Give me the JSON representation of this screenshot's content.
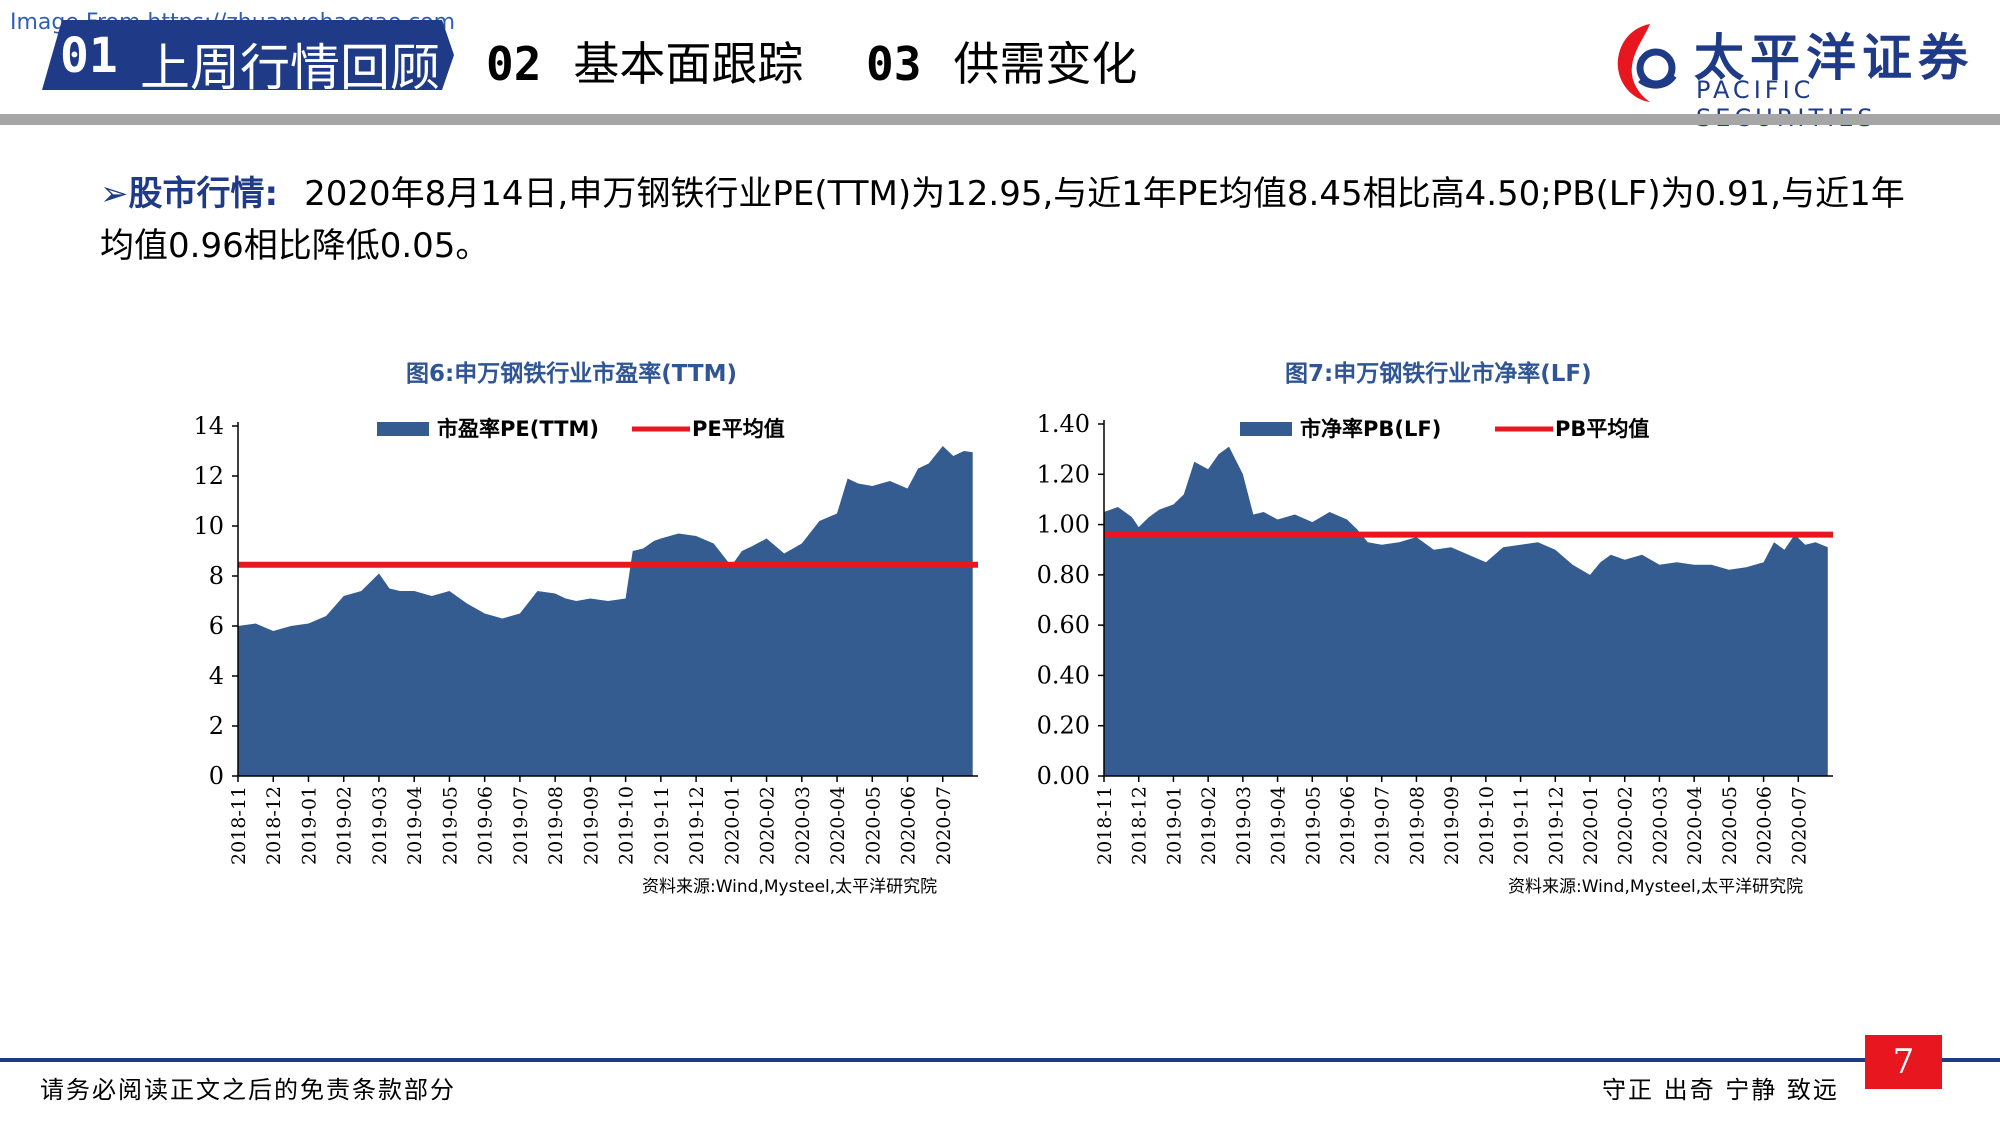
{
  "watermark": "Image From https://zhuanyehaogao.com",
  "nav": {
    "tab1_num": "01",
    "tab1_label": "上周行情回顾",
    "tab2_num": "02",
    "tab2_label": "基本面跟踪",
    "tab3_num": "03",
    "tab3_label": "供需变化"
  },
  "logo": {
    "cn": "太平洋证券",
    "en": "PACIFIC SECURITIES"
  },
  "bullet": {
    "head": "股市行情:",
    "text": "2020年8月14日,申万钢铁行业PE(TTM)为12.95,与近1年PE均值8.45相比高4.50;PB(LF)为0.91,与近1年均值0.96相比降低0.05。"
  },
  "colors": {
    "area": "#355c90",
    "mean_line": "#e8161e",
    "title": "#2f5597",
    "brand": "#1f3a87"
  },
  "chart_data": [
    {
      "type": "area",
      "title": "图6:申万钢铁行业市盈率(TTM)",
      "source": "资料来源:Wind,Mysteel,太平洋研究院",
      "x_ticks": [
        "2018-11",
        "2018-12",
        "2019-01",
        "2019-02",
        "2019-03",
        "2019-04",
        "2019-05",
        "2019-06",
        "2019-07",
        "2019-08",
        "2019-09",
        "2019-10",
        "2019-11",
        "2019-12",
        "2020-01",
        "2020-02",
        "2020-03",
        "2020-04",
        "2020-05",
        "2020-06",
        "2020-07"
      ],
      "y_ticks": [
        "0",
        "2",
        "4",
        "6",
        "8",
        "10",
        "12",
        "14"
      ],
      "ylim": [
        0,
        15
      ],
      "series": [
        {
          "name": "市盈率PE(TTM)",
          "kind": "area",
          "x": [
            0,
            0.5,
            1,
            1.5,
            2,
            2.5,
            3,
            3.5,
            4,
            4.3,
            4.6,
            5,
            5.5,
            6,
            6.5,
            7,
            7.5,
            8,
            8.5,
            9,
            9.3,
            9.6,
            10,
            10.5,
            11,
            11.2,
            11.5,
            11.8,
            12,
            12.5,
            13,
            13.5,
            14,
            14.3,
            14.6,
            15,
            15.5,
            16,
            16.5,
            17,
            17.3,
            17.6,
            18,
            18.5,
            19,
            19.3,
            19.6,
            20,
            20.3,
            20.6,
            20.85
          ],
          "values": [
            6.0,
            6.1,
            5.8,
            6.0,
            6.1,
            6.4,
            7.2,
            7.4,
            8.1,
            7.5,
            7.4,
            7.4,
            7.2,
            7.4,
            6.9,
            6.5,
            6.3,
            6.5,
            7.4,
            7.3,
            7.1,
            7.0,
            7.1,
            7.0,
            7.1,
            9.0,
            9.1,
            9.4,
            9.5,
            9.7,
            9.6,
            9.3,
            8.4,
            9.0,
            9.2,
            9.5,
            8.9,
            9.3,
            10.2,
            10.5,
            11.9,
            11.7,
            11.6,
            11.8,
            11.5,
            12.3,
            12.5,
            13.2,
            12.8,
            13.0,
            12.95
          ]
        },
        {
          "name": "PE平均值",
          "kind": "line",
          "value": 8.45
        }
      ]
    },
    {
      "type": "area",
      "title": "图7:申万钢铁行业市净率(LF)",
      "source": "资料来源:Wind,Mysteel,太平洋研究院",
      "x_ticks": [
        "2018-11",
        "2018-12",
        "2019-01",
        "2019-02",
        "2019-03",
        "2019-04",
        "2019-05",
        "2019-06",
        "2019-07",
        "2019-08",
        "2019-09",
        "2019-10",
        "2019-11",
        "2019-12",
        "2020-01",
        "2020-02",
        "2020-03",
        "2020-04",
        "2020-05",
        "2020-06",
        "2020-07"
      ],
      "y_ticks": [
        "0.00",
        "0.20",
        "0.40",
        "0.60",
        "0.80",
        "1.00",
        "1.20",
        "1.40"
      ],
      "ylim": [
        0,
        1.4
      ],
      "series": [
        {
          "name": "市净率PB(LF)",
          "kind": "area",
          "x": [
            0,
            0.4,
            0.8,
            1,
            1.3,
            1.6,
            2,
            2.3,
            2.6,
            3,
            3.3,
            3.6,
            4,
            4.3,
            4.6,
            5,
            5.5,
            6,
            6.5,
            7,
            7.3,
            7.6,
            8,
            8.5,
            9,
            9.5,
            10,
            10.5,
            11,
            11.5,
            12,
            12.5,
            13,
            13.5,
            14,
            14.3,
            14.6,
            15,
            15.5,
            16,
            16.5,
            17,
            17.5,
            18,
            18.5,
            19,
            19.3,
            19.6,
            19.9,
            20.2,
            20.5,
            20.85
          ],
          "values": [
            1.05,
            1.07,
            1.03,
            0.99,
            1.03,
            1.06,
            1.08,
            1.12,
            1.25,
            1.22,
            1.28,
            1.31,
            1.2,
            1.04,
            1.05,
            1.02,
            1.04,
            1.01,
            1.05,
            1.02,
            0.98,
            0.93,
            0.92,
            0.93,
            0.95,
            0.9,
            0.91,
            0.88,
            0.85,
            0.91,
            0.92,
            0.93,
            0.9,
            0.84,
            0.8,
            0.85,
            0.88,
            0.86,
            0.88,
            0.84,
            0.85,
            0.84,
            0.84,
            0.82,
            0.83,
            0.85,
            0.93,
            0.9,
            0.96,
            0.92,
            0.93,
            0.91
          ]
        },
        {
          "name": "PB平均值",
          "kind": "line",
          "value": 0.96
        }
      ]
    }
  ],
  "footer": {
    "left": "请务必阅读正文之后的免责条款部分",
    "right": "守正 出奇 宁静 致远",
    "page": "7"
  }
}
